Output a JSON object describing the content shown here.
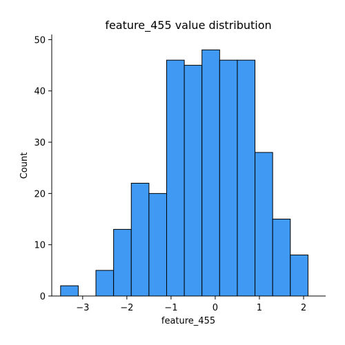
{
  "chart_data": {
    "type": "bar",
    "title": "feature_455 value distribution",
    "xlabel": "feature_455",
    "ylabel": "Count",
    "bin_edges": [
      -3.5,
      -3.1,
      -2.7,
      -2.3,
      -1.9,
      -1.5,
      -1.1,
      -0.7,
      -0.3,
      0.1,
      0.5,
      0.9,
      1.3,
      1.7,
      2.1
    ],
    "bin_edges_note": "",
    "values": [
      2,
      0,
      5,
      13,
      22,
      20,
      46,
      45,
      48,
      46,
      46,
      28,
      15,
      8
    ],
    "xlim": [
      -3.7,
      2.5
    ],
    "ylim": [
      0,
      51
    ],
    "xticks": [
      -3,
      -2,
      -1,
      0,
      1,
      2
    ],
    "xtick_labels": [
      "−3",
      "−2",
      "−1",
      "0",
      "1",
      "2"
    ],
    "yticks": [
      0,
      10,
      20,
      30,
      40,
      50
    ],
    "ytick_labels": [
      "0",
      "10",
      "20",
      "30",
      "40",
      "50"
    ],
    "bar_color": "#4099f2",
    "edge_color": "#000000",
    "grid": false,
    "legend": "none"
  }
}
